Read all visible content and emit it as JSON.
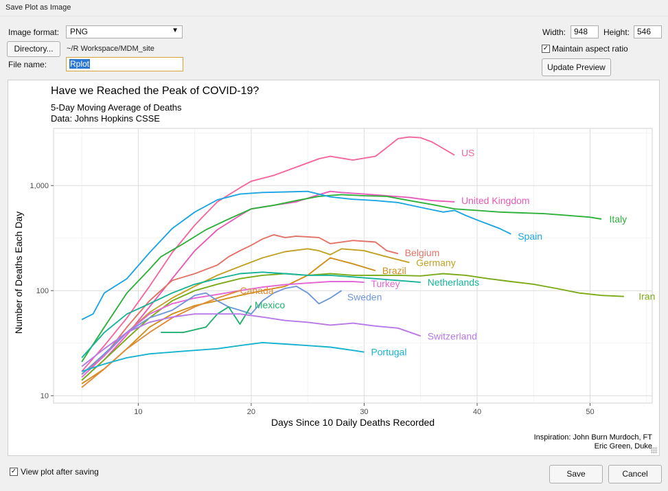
{
  "window": {
    "title": "Save Plot as Image"
  },
  "form": {
    "format_label": "Image format:",
    "format_value": "PNG",
    "directory_button": "Directory...",
    "directory_path": "~/R Workspace/MDM_site",
    "filename_label": "File name:",
    "filename_value": "Rplot",
    "width_label": "Width:",
    "width_value": "948",
    "height_label": "Height:",
    "height_value": "546",
    "aspect_label": "Maintain aspect ratio",
    "aspect_checked": true,
    "update_button": "Update Preview"
  },
  "footer": {
    "view_after_label": "View plot after saving",
    "view_after_checked": true,
    "save_button": "Save",
    "cancel_button": "Cancel"
  },
  "icons": {
    "dropdown": "chevron-down-icon",
    "check": "checkmark-icon",
    "resize": "resize-grip-icon"
  },
  "chart_data": {
    "type": "line",
    "title": "Have we Reached the Peak of COVID-19?",
    "subtitle_line1": "5-Day Moving Average of Deaths",
    "subtitle_line2": "Data: Johns Hopkins CSSE",
    "xlabel": "Days Since 10 Daily Deaths Recorded",
    "ylabel": "Number of Deaths Each Day",
    "caption_line1": "Inspiration: John Burn Murdoch, FT",
    "caption_line2": "Eric Green, Duke",
    "xlim": [
      2.5,
      55.5
    ],
    "ylim": [
      8.5,
      3500
    ],
    "yscale": "log",
    "grid": true,
    "xticks": [
      10,
      20,
      30,
      40,
      50
    ],
    "yticks": [
      {
        "v": 10,
        "label": "10"
      },
      {
        "v": 100,
        "label": "100"
      },
      {
        "v": 1000,
        "label": "1,000"
      }
    ],
    "series": [
      {
        "name": "US",
        "color": "#f2689f",
        "points": [
          [
            5,
            17
          ],
          [
            7,
            30
          ],
          [
            9,
            55
          ],
          [
            11,
            110
          ],
          [
            13,
            230
          ],
          [
            15,
            420
          ],
          [
            17,
            700
          ],
          [
            19,
            950
          ],
          [
            20,
            1100
          ],
          [
            22,
            1250
          ],
          [
            24,
            1500
          ],
          [
            26,
            1800
          ],
          [
            27,
            1900
          ],
          [
            29,
            1750
          ],
          [
            31,
            1900
          ],
          [
            32,
            2300
          ],
          [
            33,
            2800
          ],
          [
            34,
            2900
          ],
          [
            35,
            2850
          ],
          [
            36,
            2600
          ],
          [
            38,
            1950
          ]
        ],
        "label_x": 38.6
      },
      {
        "name": "United Kingdom",
        "color": "#e85ab8",
        "points": [
          [
            5,
            14
          ],
          [
            7,
            22
          ],
          [
            9,
            38
          ],
          [
            11,
            70
          ],
          [
            13,
            130
          ],
          [
            15,
            240
          ],
          [
            17,
            380
          ],
          [
            19,
            520
          ],
          [
            20,
            600
          ],
          [
            22,
            650
          ],
          [
            24,
            700
          ],
          [
            26,
            820
          ],
          [
            27,
            880
          ],
          [
            28,
            860
          ],
          [
            30,
            830
          ],
          [
            32,
            800
          ],
          [
            34,
            770
          ],
          [
            36,
            720
          ],
          [
            38,
            700
          ]
        ],
        "label_x": 38.6
      },
      {
        "name": "Italy",
        "color": "#2eb13a",
        "points": [
          [
            5,
            21
          ],
          [
            7,
            45
          ],
          [
            9,
            95
          ],
          [
            11,
            160
          ],
          [
            12,
            210
          ],
          [
            14,
            280
          ],
          [
            16,
            380
          ],
          [
            18,
            480
          ],
          [
            20,
            600
          ],
          [
            22,
            650
          ],
          [
            24,
            720
          ],
          [
            26,
            790
          ],
          [
            28,
            820
          ],
          [
            30,
            800
          ],
          [
            32,
            790
          ],
          [
            34,
            720
          ],
          [
            36,
            660
          ],
          [
            38,
            600
          ],
          [
            40,
            580
          ],
          [
            42,
            560
          ],
          [
            44,
            550
          ],
          [
            46,
            540
          ],
          [
            48,
            520
          ],
          [
            50,
            500
          ],
          [
            51,
            480
          ]
        ],
        "label_x": 51.7
      },
      {
        "name": "Spain",
        "color": "#1ea5e3",
        "points": [
          [
            5,
            53
          ],
          [
            6,
            60
          ],
          [
            7,
            95
          ],
          [
            9,
            130
          ],
          [
            11,
            230
          ],
          [
            13,
            390
          ],
          [
            15,
            560
          ],
          [
            17,
            730
          ],
          [
            19,
            830
          ],
          [
            21,
            860
          ],
          [
            23,
            870
          ],
          [
            25,
            880
          ],
          [
            27,
            780
          ],
          [
            29,
            740
          ],
          [
            31,
            720
          ],
          [
            33,
            690
          ],
          [
            35,
            620
          ],
          [
            37,
            560
          ],
          [
            38,
            580
          ],
          [
            39,
            520
          ],
          [
            40,
            470
          ],
          [
            42,
            390
          ],
          [
            43,
            345
          ]
        ],
        "label_x": 43.6
      },
      {
        "name": "Iran",
        "color": "#7aab17",
        "points": [
          [
            5,
            14
          ],
          [
            7,
            22
          ],
          [
            9,
            35
          ],
          [
            11,
            55
          ],
          [
            13,
            80
          ],
          [
            15,
            100
          ],
          [
            17,
            115
          ],
          [
            19,
            130
          ],
          [
            21,
            140
          ],
          [
            23,
            145
          ],
          [
            25,
            140
          ],
          [
            27,
            145
          ],
          [
            29,
            140
          ],
          [
            31,
            140
          ],
          [
            33,
            140
          ],
          [
            35,
            138
          ],
          [
            37,
            145
          ],
          [
            39,
            140
          ],
          [
            41,
            130
          ],
          [
            43,
            122
          ],
          [
            45,
            115
          ],
          [
            47,
            105
          ],
          [
            49,
            95
          ],
          [
            51,
            90
          ],
          [
            53,
            88
          ]
        ],
        "label_x": 54.3
      },
      {
        "name": "Belgium",
        "color": "#e37266",
        "points": [
          [
            5,
            16
          ],
          [
            7,
            24
          ],
          [
            9,
            45
          ],
          [
            11,
            80
          ],
          [
            13,
            125
          ],
          [
            15,
            145
          ],
          [
            17,
            175
          ],
          [
            18,
            210
          ],
          [
            19,
            240
          ],
          [
            20,
            270
          ],
          [
            21,
            310
          ],
          [
            22,
            340
          ],
          [
            23,
            320
          ],
          [
            24,
            330
          ],
          [
            26,
            320
          ],
          [
            27,
            280
          ],
          [
            29,
            300
          ],
          [
            31,
            290
          ],
          [
            32,
            240
          ],
          [
            33,
            225
          ]
        ],
        "label_x": 33.6
      },
      {
        "name": "Germany",
        "color": "#c2a124",
        "points": [
          [
            5,
            16
          ],
          [
            7,
            25
          ],
          [
            9,
            40
          ],
          [
            11,
            62
          ],
          [
            13,
            85
          ],
          [
            15,
            110
          ],
          [
            17,
            140
          ],
          [
            19,
            170
          ],
          [
            21,
            205
          ],
          [
            23,
            235
          ],
          [
            25,
            250
          ],
          [
            26,
            240
          ],
          [
            27,
            220
          ],
          [
            28,
            250
          ],
          [
            30,
            240
          ],
          [
            32,
            210
          ],
          [
            34,
            185
          ]
        ],
        "label_x": 34.6
      },
      {
        "name": "Brazil",
        "color": "#d18e1b",
        "points": [
          [
            5,
            13
          ],
          [
            7,
            18
          ],
          [
            9,
            28
          ],
          [
            11,
            45
          ],
          [
            13,
            60
          ],
          [
            15,
            72
          ],
          [
            17,
            80
          ],
          [
            19,
            90
          ],
          [
            21,
            100
          ],
          [
            23,
            110
          ],
          [
            25,
            140
          ],
          [
            26,
            170
          ],
          [
            27,
            205
          ],
          [
            29,
            180
          ],
          [
            31,
            155
          ]
        ],
        "label_x": 31.6
      },
      {
        "name": "Netherlands",
        "color": "#17b39b",
        "points": [
          [
            5,
            23
          ],
          [
            7,
            40
          ],
          [
            9,
            60
          ],
          [
            11,
            75
          ],
          [
            13,
            95
          ],
          [
            15,
            115
          ],
          [
            17,
            130
          ],
          [
            19,
            145
          ],
          [
            21,
            150
          ],
          [
            23,
            145
          ],
          [
            25,
            140
          ],
          [
            27,
            140
          ],
          [
            29,
            135
          ],
          [
            31,
            130
          ],
          [
            33,
            125
          ],
          [
            35,
            120
          ]
        ],
        "label_x": 35.6
      },
      {
        "name": "Turkey",
        "color": "#e466d4",
        "points": [
          [
            5,
            15
          ],
          [
            7,
            24
          ],
          [
            9,
            40
          ],
          [
            11,
            60
          ],
          [
            13,
            75
          ],
          [
            15,
            85
          ],
          [
            17,
            92
          ],
          [
            19,
            100
          ],
          [
            21,
            108
          ],
          [
            23,
            114
          ],
          [
            25,
            118
          ],
          [
            27,
            122
          ],
          [
            29,
            122
          ],
          [
            30,
            120
          ]
        ],
        "label_x": 30.6
      },
      {
        "name": "Canada",
        "color": "#e08b36",
        "points": [
          [
            5,
            12
          ],
          [
            7,
            18
          ],
          [
            9,
            28
          ],
          [
            11,
            40
          ],
          [
            13,
            55
          ],
          [
            15,
            70
          ],
          [
            17,
            85
          ],
          [
            19,
            100
          ]
        ],
        "label_x": 19.0
      },
      {
        "name": "Sweden",
        "color": "#6f97db",
        "points": [
          [
            5,
            16
          ],
          [
            7,
            25
          ],
          [
            9,
            40
          ],
          [
            11,
            55
          ],
          [
            13,
            65
          ],
          [
            15,
            90
          ],
          [
            16,
            95
          ],
          [
            17,
            80
          ],
          [
            18,
            70
          ],
          [
            19,
            65
          ],
          [
            20,
            60
          ],
          [
            21,
            80
          ],
          [
            22,
            95
          ],
          [
            23,
            105
          ],
          [
            24,
            110
          ],
          [
            25,
            95
          ],
          [
            26,
            75
          ],
          [
            27,
            85
          ],
          [
            28,
            100
          ]
        ],
        "label_x": 28.5
      },
      {
        "name": "Mexico",
        "color": "#21b16f",
        "points": [
          [
            12,
            40
          ],
          [
            14,
            40
          ],
          [
            16,
            45
          ],
          [
            17,
            60
          ],
          [
            18,
            70
          ],
          [
            19,
            48
          ],
          [
            20,
            72
          ]
        ],
        "label_x": 20.3
      },
      {
        "name": "Switzerland",
        "color": "#b878e8",
        "points": [
          [
            5,
            19
          ],
          [
            7,
            28
          ],
          [
            9,
            40
          ],
          [
            11,
            50
          ],
          [
            13,
            56
          ],
          [
            15,
            60
          ],
          [
            17,
            60
          ],
          [
            19,
            60
          ],
          [
            21,
            56
          ],
          [
            23,
            52
          ],
          [
            25,
            50
          ],
          [
            27,
            47
          ],
          [
            29,
            49
          ],
          [
            31,
            46
          ],
          [
            33,
            44
          ],
          [
            35,
            37
          ]
        ],
        "label_x": 35.6
      },
      {
        "name": "Portugal",
        "color": "#17b2cf",
        "points": [
          [
            5,
            17
          ],
          [
            7,
            20
          ],
          [
            9,
            23
          ],
          [
            11,
            25
          ],
          [
            13,
            26
          ],
          [
            15,
            27
          ],
          [
            17,
            28
          ],
          [
            19,
            30
          ],
          [
            21,
            32
          ],
          [
            23,
            31
          ],
          [
            25,
            30
          ],
          [
            27,
            29
          ],
          [
            29,
            27
          ],
          [
            30,
            26
          ]
        ],
        "label_x": 30.6
      }
    ],
    "label_y_override": {
      "US": 2050,
      "United Kingdom": 720,
      "Italy": 480,
      "Spain": 330,
      "Iran": 88,
      "Belgium": 230,
      "Germany": 185,
      "Brazil": 155,
      "Netherlands": 120,
      "Turkey": 117,
      "Canada": 100,
      "Sweden": 87,
      "Mexico": 73,
      "Switzerland": 37,
      "Portugal": 26
    }
  }
}
